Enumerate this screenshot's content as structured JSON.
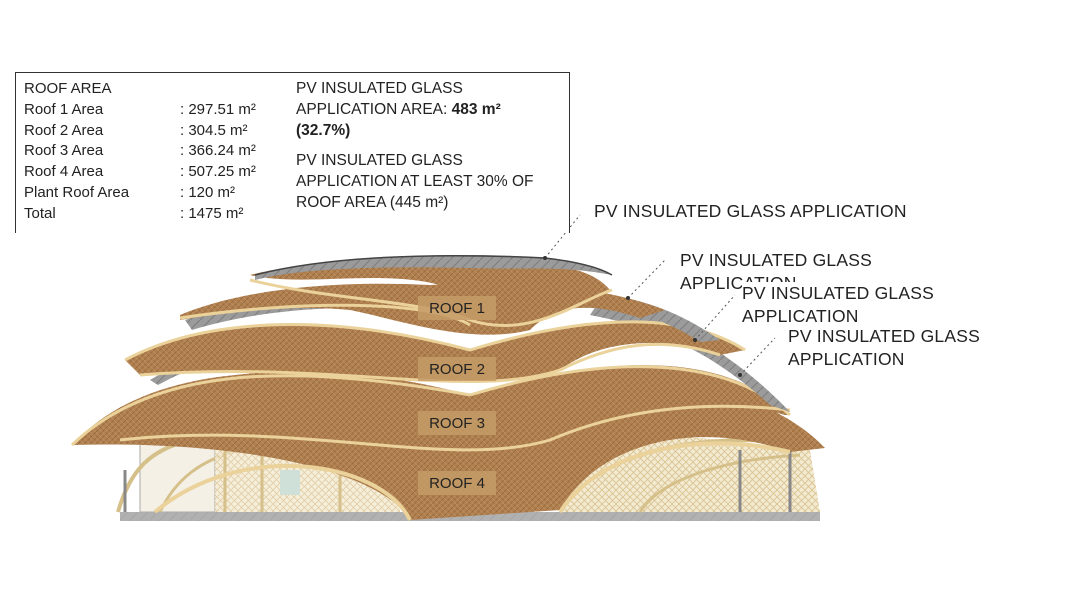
{
  "info": {
    "roof_area_title": "ROOF AREA",
    "rows": [
      {
        "label": "Roof 1 Area",
        "value": ": 297.51 m²"
      },
      {
        "label": "Roof 2 Area",
        "value": ": 304.5 m²"
      },
      {
        "label": "Roof 3 Area",
        "value": ": 366.24 m²"
      },
      {
        "label": "Roof 4 Area",
        "value": ": 507.25 m²"
      },
      {
        "label": "Plant Roof Area",
        "value": ": 120 m²"
      },
      {
        "label": "Total",
        "value": ": 1475 m²"
      }
    ],
    "pv_area_line1": "PV INSULATED GLASS",
    "pv_area_line2_prefix": "APPLICATION AREA: ",
    "pv_area_value": "483 m²",
    "pv_area_percent": "(32.7%)",
    "pv_min_line1": "PV INSULATED GLASS",
    "pv_min_line2": "APPLICATION AT LEAST 30% OF",
    "pv_min_line3": "ROOF AREA (445 m²)"
  },
  "callouts": [
    {
      "line1": "PV INSULATED GLASS APPLICATION",
      "line2": ""
    },
    {
      "line1": "PV INSULATED GLASS",
      "line2": "APPLICATION"
    },
    {
      "line1": "PV INSULATED GLASS",
      "line2": "APPLICATION"
    },
    {
      "line1": "PV INSULATED GLASS",
      "line2": "APPLICATION"
    }
  ],
  "roof_labels": [
    "ROOF 1",
    "ROOF 2",
    "ROOF 3",
    "ROOF 4"
  ],
  "colors": {
    "roof_thatch": "#b5844f",
    "roof_edge": "#e8cf8a",
    "glass": "#8c8c8c",
    "label_box": "#c9a06a"
  }
}
